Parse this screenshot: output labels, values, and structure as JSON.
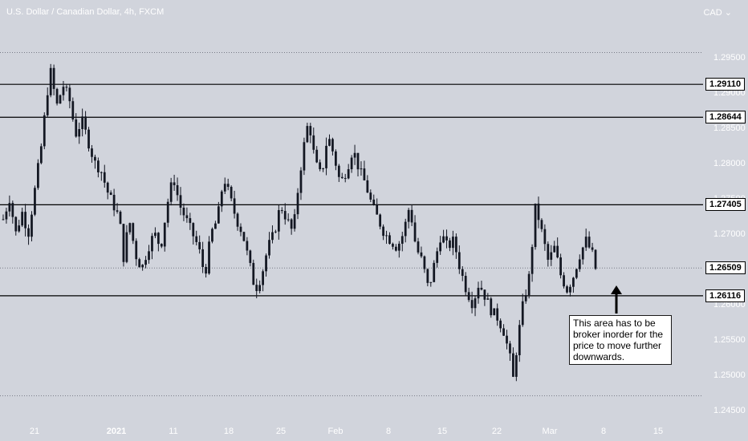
{
  "title": "U.S. Dollar / Canadian Dollar, 4h, FXCM",
  "currency_label": "CAD",
  "chart_data": {
    "type": "candlestick",
    "symbol": "USDCAD",
    "timeframe": "4h",
    "ylim": [
      1.244,
      1.2985
    ],
    "x_ticks": [
      "21",
      "2021",
      "11",
      "18",
      "25",
      "Feb",
      "8",
      "15",
      "22",
      "Mar",
      "8",
      "15"
    ],
    "y_ticks": [
      1.295,
      1.29,
      1.285,
      1.28,
      1.275,
      1.27,
      1.265,
      1.26,
      1.255,
      1.25,
      1.245
    ],
    "level_lines": [
      1.2911,
      1.28644,
      1.27405,
      1.26116
    ],
    "level_labels": [
      "1.29110",
      "1.28644",
      "1.27405",
      "1.26116"
    ],
    "dotted_lines": [
      1.2956,
      1.26509,
      1.247
    ],
    "last_price": 1.26509,
    "last_price_label": "1.26509",
    "price_path": [
      [
        0,
        1.272
      ],
      [
        2,
        1.275
      ],
      [
        4,
        1.27
      ],
      [
        6,
        1.273
      ],
      [
        8,
        1.27
      ],
      [
        10,
        1.276
      ],
      [
        12,
        1.282
      ],
      [
        14,
        1.29
      ],
      [
        15,
        1.293
      ],
      [
        17,
        1.288
      ],
      [
        19,
        1.291
      ],
      [
        21,
        1.289
      ],
      [
        23,
        1.284
      ],
      [
        25,
        1.286
      ],
      [
        27,
        1.283
      ],
      [
        29,
        1.28
      ],
      [
        31,
        1.279
      ],
      [
        33,
        1.276
      ],
      [
        35,
        1.274
      ],
      [
        37,
        1.272
      ],
      [
        38,
        1.266
      ],
      [
        40,
        1.272
      ],
      [
        42,
        1.267
      ],
      [
        44,
        1.265
      ],
      [
        46,
        1.268
      ],
      [
        48,
        1.27
      ],
      [
        50,
        1.268
      ],
      [
        52,
        1.274
      ],
      [
        54,
        1.278
      ],
      [
        56,
        1.274
      ],
      [
        58,
        1.272
      ],
      [
        60,
        1.27
      ],
      [
        62,
        1.268
      ],
      [
        64,
        1.264
      ],
      [
        66,
        1.27
      ],
      [
        68,
        1.272
      ],
      [
        70,
        1.278
      ],
      [
        72,
        1.275
      ],
      [
        74,
        1.272
      ],
      [
        76,
        1.27
      ],
      [
        78,
        1.266
      ],
      [
        80,
        1.262
      ],
      [
        82,
        1.264
      ],
      [
        84,
        1.268
      ],
      [
        86,
        1.27
      ],
      [
        88,
        1.274
      ],
      [
        90,
        1.272
      ],
      [
        92,
        1.27
      ],
      [
        94,
        1.278
      ],
      [
        96,
        1.284
      ],
      [
        97,
        1.286
      ],
      [
        99,
        1.28
      ],
      [
        101,
        1.278
      ],
      [
        103,
        1.284
      ],
      [
        105,
        1.281
      ],
      [
        107,
        1.277
      ],
      [
        109,
        1.279
      ],
      [
        111,
        1.282
      ],
      [
        113,
        1.279
      ],
      [
        115,
        1.277
      ],
      [
        117,
        1.274
      ],
      [
        119,
        1.272
      ],
      [
        121,
        1.27
      ],
      [
        123,
        1.269
      ],
      [
        125,
        1.268
      ],
      [
        127,
        1.27
      ],
      [
        129,
        1.274
      ],
      [
        131,
        1.268
      ],
      [
        133,
        1.266
      ],
      [
        135,
        1.262
      ],
      [
        137,
        1.266
      ],
      [
        139,
        1.27
      ],
      [
        141,
        1.268
      ],
      [
        143,
        1.269
      ],
      [
        145,
        1.265
      ],
      [
        147,
        1.262
      ],
      [
        149,
        1.26
      ],
      [
        151,
        1.263
      ],
      [
        153,
        1.261
      ],
      [
        155,
        1.259
      ],
      [
        157,
        1.258
      ],
      [
        159,
        1.256
      ],
      [
        161,
        1.252
      ],
      [
        162,
        1.249
      ],
      [
        163,
        1.254
      ],
      [
        165,
        1.26
      ],
      [
        167,
        1.264
      ],
      [
        169,
        1.274
      ],
      [
        171,
        1.27
      ],
      [
        173,
        1.266
      ],
      [
        175,
        1.268
      ],
      [
        177,
        1.264
      ],
      [
        179,
        1.262
      ],
      [
        181,
        1.264
      ],
      [
        183,
        1.267
      ],
      [
        185,
        1.269
      ],
      [
        187,
        1.267
      ],
      [
        188,
        1.265
      ]
    ]
  },
  "annotation": {
    "text": "This area has to be broker inorder for the price to move further downwards."
  },
  "colors": {
    "background": "#d1d4dc",
    "candle": "#131722",
    "level_line": "#000000",
    "dotted_line": "#787b86",
    "axis_text": "#ffffff"
  }
}
